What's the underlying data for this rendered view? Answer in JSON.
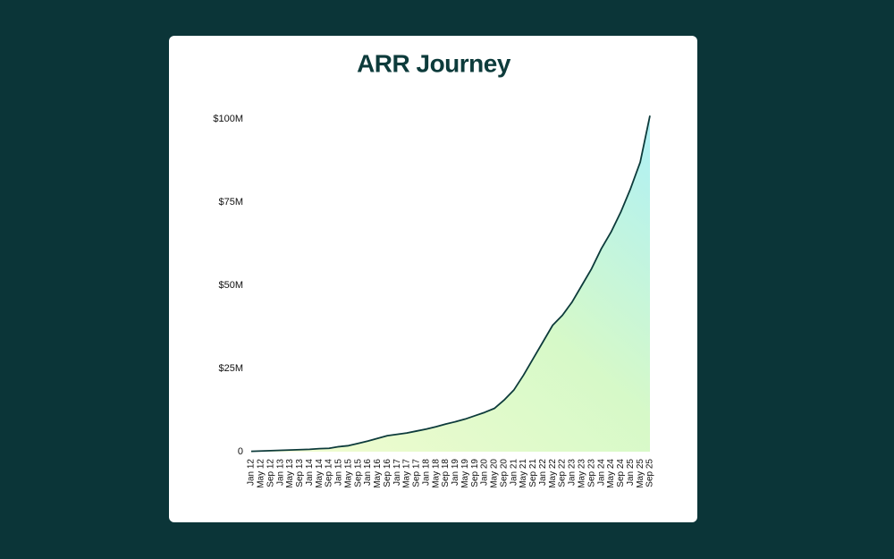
{
  "chart_data": {
    "type": "area",
    "title": "ARR Journey",
    "categories": [
      "Jan 12",
      "May 12",
      "Sep 12",
      "Jan 13",
      "May 13",
      "Sep 13",
      "Jan 14",
      "May 14",
      "Sep 14",
      "Jan 15",
      "May 15",
      "Sep 15",
      "Jan 16",
      "May 16",
      "Sep 16",
      "Jan 17",
      "May 17",
      "Sep 17",
      "Jan 18",
      "May 18",
      "Sep 18",
      "Jan 19",
      "May 19",
      "Sep 19",
      "Jan 20",
      "May 20",
      "Sep 20",
      "Jan 21",
      "May 21",
      "Sep 21",
      "Jan 22",
      "May 22",
      "Sep 22",
      "Jan 23",
      "May 23",
      "Sep 23",
      "Jan 24",
      "May 24",
      "Sep 24",
      "Jan 25",
      "May 25",
      "Sep 25"
    ],
    "values": [
      0.1,
      0.2,
      0.3,
      0.4,
      0.5,
      0.6,
      0.7,
      0.9,
      1.0,
      1.5,
      1.8,
      2.5,
      3.2,
      4.0,
      4.8,
      5.2,
      5.6,
      6.2,
      6.8,
      7.5,
      8.3,
      9.0,
      9.8,
      10.8,
      11.8,
      13.0,
      15.5,
      18.5,
      23,
      28,
      33,
      38,
      41,
      45,
      50,
      55,
      61,
      66,
      72,
      79,
      87,
      101
    ],
    "color": "#0d3b3b",
    "ylim": [
      0,
      100
    ],
    "yticks": [
      0,
      {
        "value": 25,
        "label": "$25M"
      },
      {
        "value": 50,
        "label": "$50M"
      },
      {
        "value": 75,
        "label": "$75M"
      },
      {
        "value": 100,
        "label": "$100M"
      }
    ],
    "grid": false
  }
}
